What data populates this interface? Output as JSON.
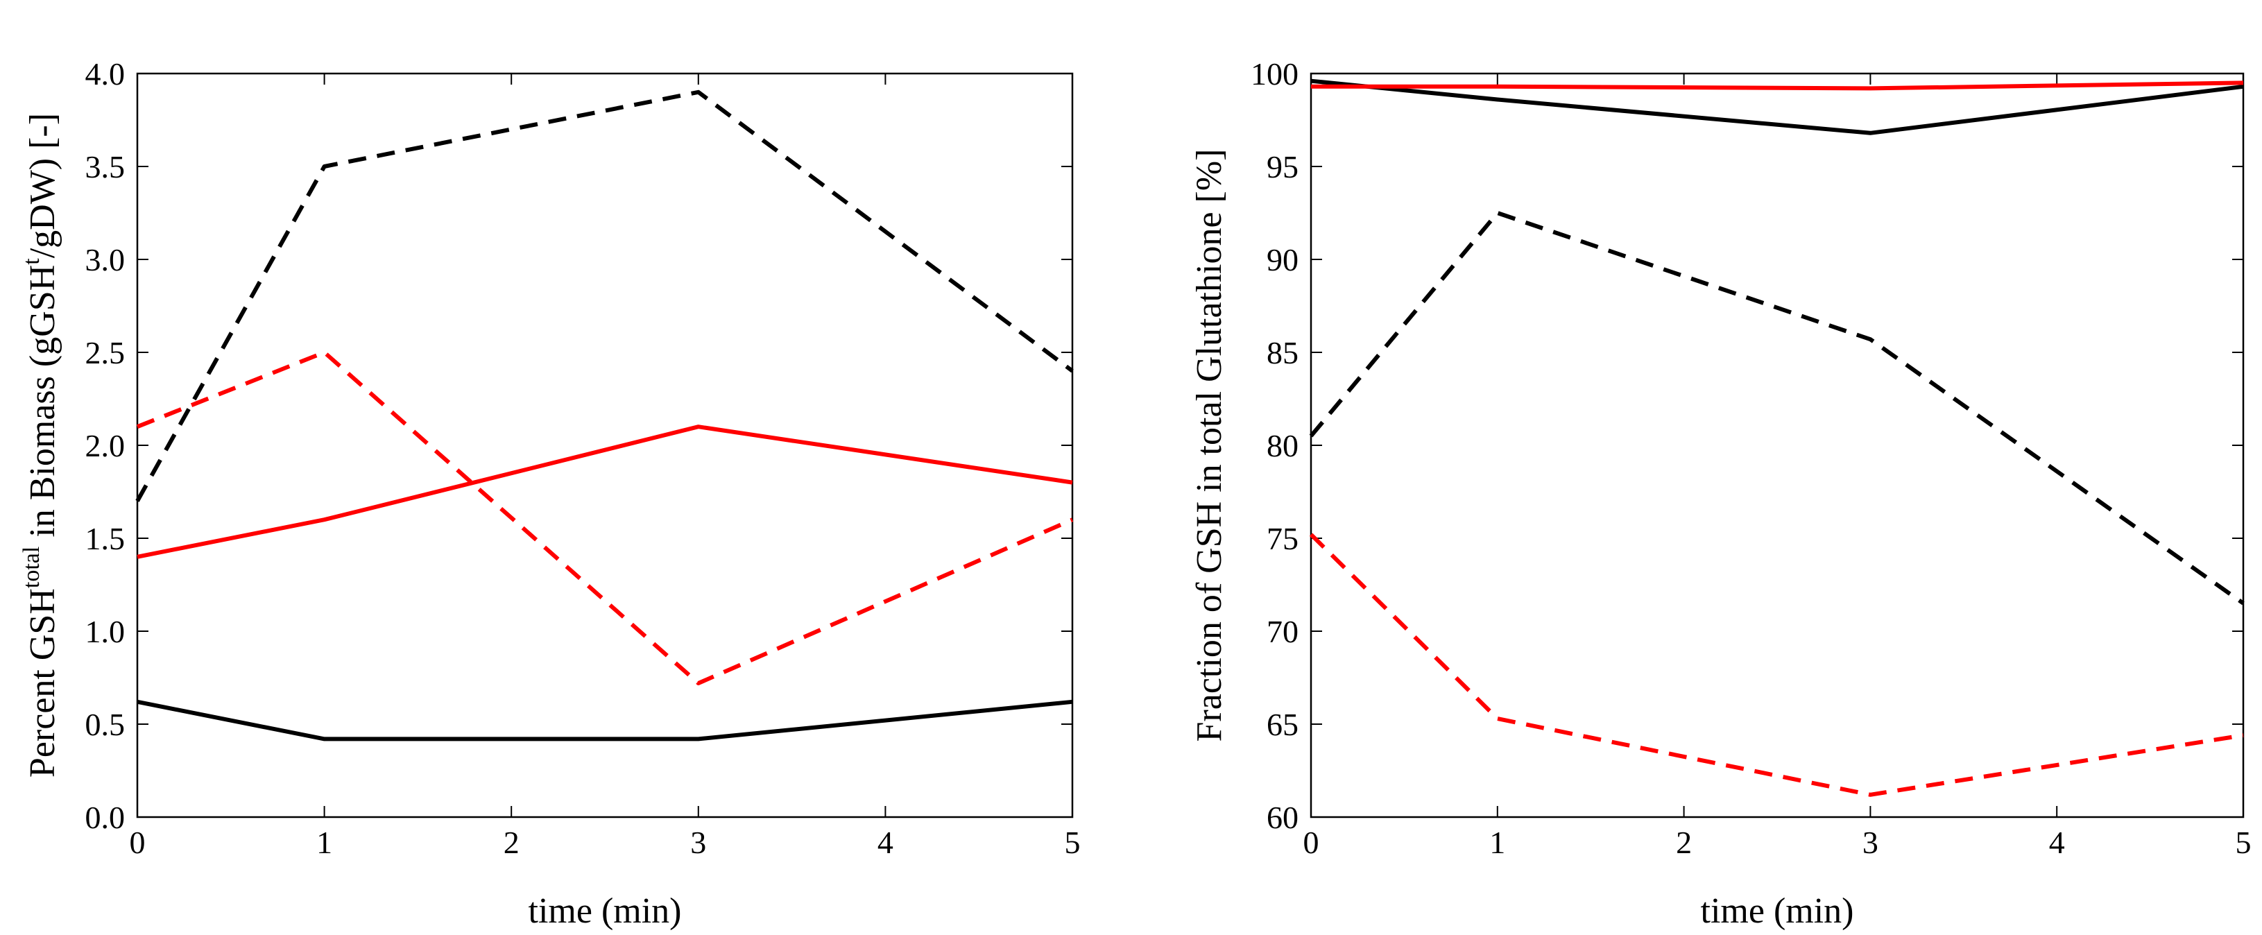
{
  "chart_data": [
    {
      "type": "line",
      "xlabel": "time (min)",
      "ylabel": {
        "prefix": "Percent GSH",
        "prefix_sup": "total",
        "middle": " in Biomass (gGSH",
        "middle_sup": "t",
        "suffix": "/gDW) [-]"
      },
      "xlim": [
        0,
        5
      ],
      "ylim": [
        0,
        4
      ],
      "xticks": [
        "0",
        "1",
        "2",
        "3",
        "4",
        "5"
      ],
      "yticks": [
        "0.0",
        "0.5",
        "1.0",
        "1.5",
        "2.0",
        "2.5",
        "3.0",
        "3.5",
        "4.0"
      ],
      "x": [
        0,
        1,
        3,
        5
      ],
      "series": [
        {
          "name": "black solid",
          "color": "#000000",
          "dash": "solid",
          "values": [
            0.62,
            0.42,
            0.42,
            0.62
          ]
        },
        {
          "name": "black dashed",
          "color": "#000000",
          "dash": "dashed",
          "values": [
            1.7,
            3.5,
            3.9,
            2.4
          ]
        },
        {
          "name": "red solid",
          "color": "#ff0000",
          "dash": "solid",
          "values": [
            1.4,
            1.6,
            2.1,
            1.8
          ]
        },
        {
          "name": "red dashed",
          "color": "#ff0000",
          "dash": "dashed",
          "values": [
            2.1,
            2.5,
            0.72,
            1.6
          ]
        }
      ]
    },
    {
      "type": "line",
      "xlabel": "time (min)",
      "ylabel": "Fraction of GSH in total Glutathione [%]",
      "xlim": [
        0,
        5
      ],
      "ylim": [
        60,
        100
      ],
      "xticks": [
        "0",
        "1",
        "2",
        "3",
        "4",
        "5"
      ],
      "yticks": [
        "60",
        "65",
        "70",
        "75",
        "80",
        "85",
        "90",
        "95",
        "100"
      ],
      "x": [
        0,
        1,
        3,
        5
      ],
      "series": [
        {
          "name": "black solid",
          "color": "#000000",
          "dash": "solid",
          "values": [
            99.6,
            98.6,
            96.8,
            99.3
          ]
        },
        {
          "name": "red solid",
          "color": "#ff0000",
          "dash": "solid",
          "values": [
            99.3,
            99.3,
            99.2,
            99.5
          ]
        },
        {
          "name": "black dashed",
          "color": "#000000",
          "dash": "dashed",
          "values": [
            80.5,
            92.5,
            85.7,
            71.5
          ]
        },
        {
          "name": "red dashed",
          "color": "#ff0000",
          "dash": "dashed",
          "values": [
            75.2,
            65.3,
            61.2,
            64.4
          ]
        }
      ]
    }
  ]
}
